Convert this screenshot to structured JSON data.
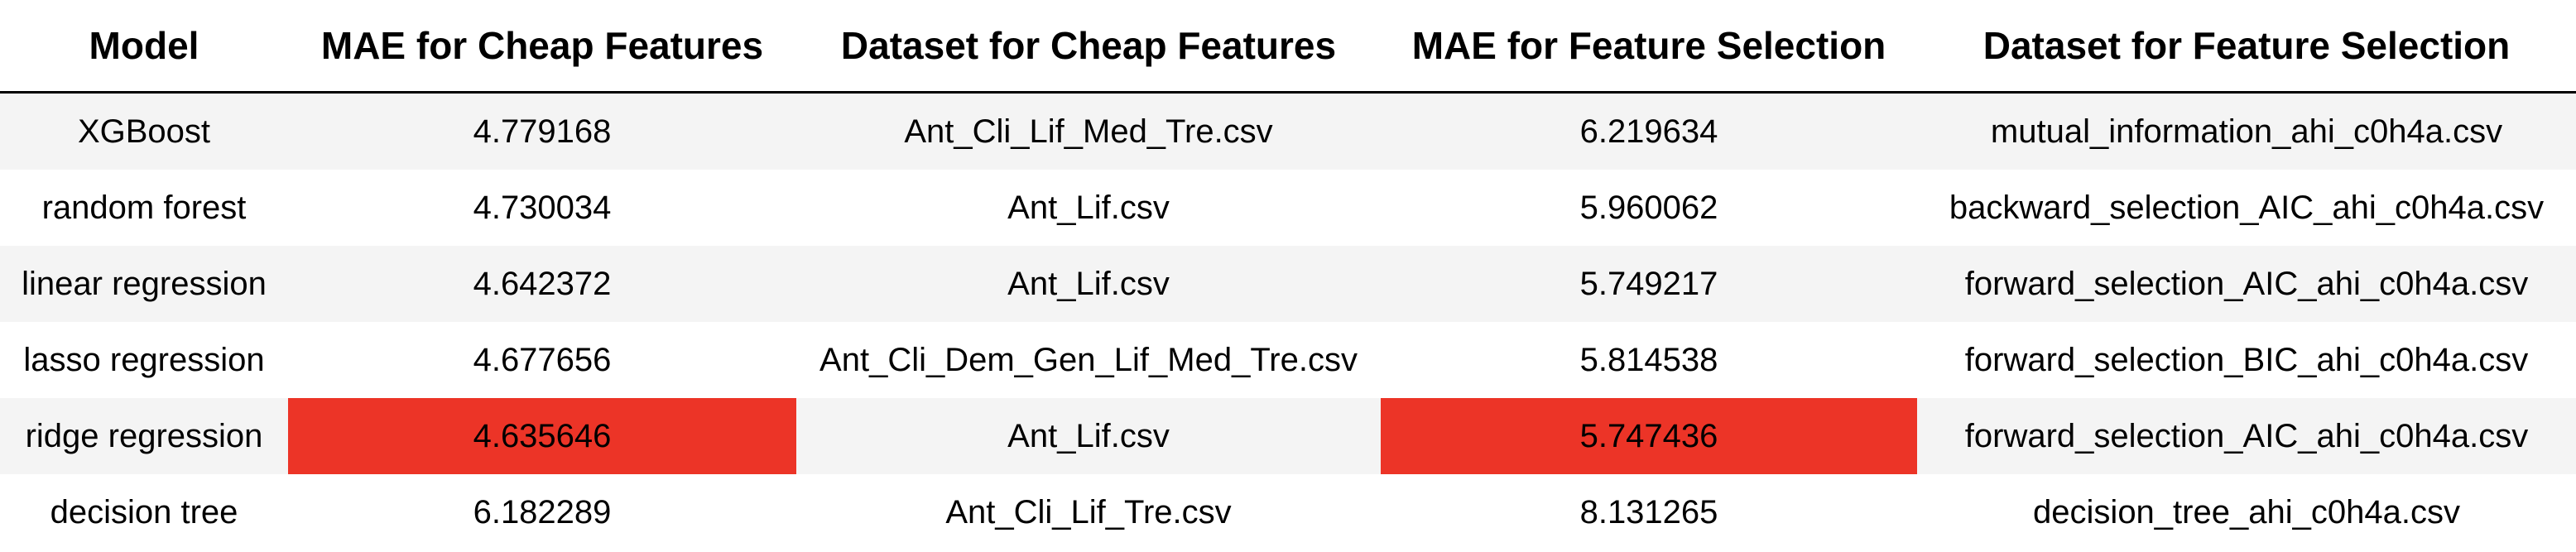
{
  "table": {
    "headers": [
      "Model",
      "MAE for Cheap Features",
      "Dataset for Cheap Features",
      "MAE for Feature Selection",
      "Dataset for Feature Selection"
    ],
    "rows": [
      [
        "XGBoost",
        "4.779168",
        "Ant_Cli_Lif_Med_Tre.csv",
        "6.219634",
        "mutual_information_ahi_c0h4a.csv"
      ],
      [
        "random forest",
        "4.730034",
        "Ant_Lif.csv",
        "5.960062",
        "backward_selection_AIC_ahi_c0h4a.csv"
      ],
      [
        "linear regression",
        "4.642372",
        "Ant_Lif.csv",
        "5.749217",
        "forward_selection_AIC_ahi_c0h4a.csv"
      ],
      [
        "lasso regression",
        "4.677656",
        "Ant_Cli_Dem_Gen_Lif_Med_Tre.csv",
        "5.814538",
        "forward_selection_BIC_ahi_c0h4a.csv"
      ],
      [
        "ridge regression",
        "4.635646",
        "Ant_Lif.csv",
        "5.747436",
        "forward_selection_AIC_ahi_c0h4a.csv"
      ],
      [
        "decision tree",
        "6.182289",
        "Ant_Cli_Lif_Tre.csv",
        "8.131265",
        "decision_tree_ahi_c0h4a.csv"
      ]
    ],
    "highlight_color": "#ec3427",
    "stripe_color": "#f4f4f4"
  }
}
